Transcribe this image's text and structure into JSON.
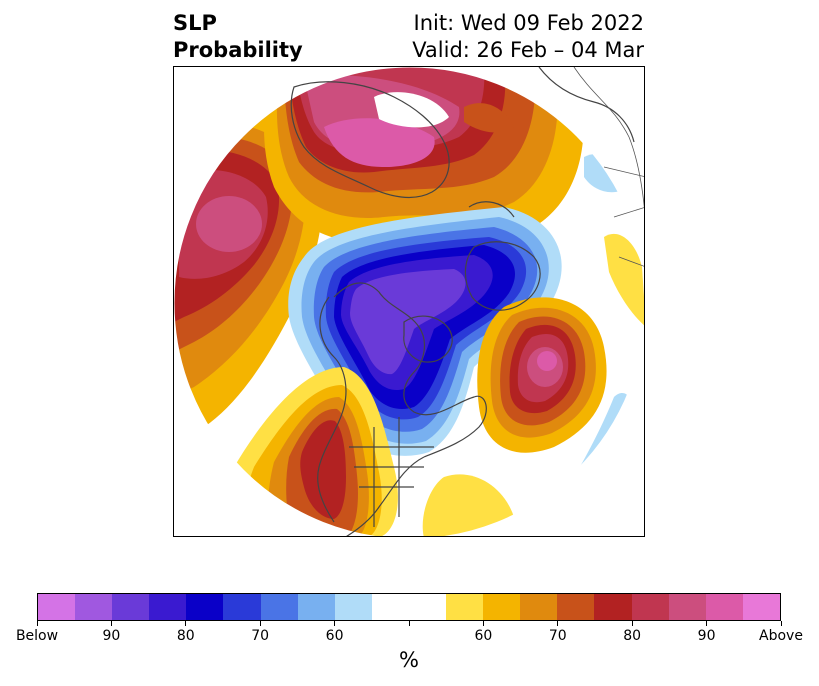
{
  "title": {
    "left_line1": "SLP",
    "left_line2": "Probability",
    "right_line1": "Init: Wed 09 Feb 2022",
    "right_line2": "Valid: 26 Feb – 04 Mar"
  },
  "colorbar": {
    "colors": [
      "#d473e6",
      "#a058e0",
      "#6a3ad8",
      "#3a1ad0",
      "#0a00c8",
      "#2a3ad8",
      "#4a74e6",
      "#78b0f0",
      "#b0dcf8",
      "#ffffff",
      "#ffffff",
      "#ffe044",
      "#f4b400",
      "#e08a0e",
      "#c8521a",
      "#b22222",
      "#c03650",
      "#cc4e7e",
      "#dc5aa8",
      "#e878d8"
    ],
    "tick_labels": [
      "Below",
      "90",
      "80",
      "70",
      "60",
      "",
      "60",
      "70",
      "80",
      "90",
      "Above"
    ],
    "unit_label": "%"
  }
}
